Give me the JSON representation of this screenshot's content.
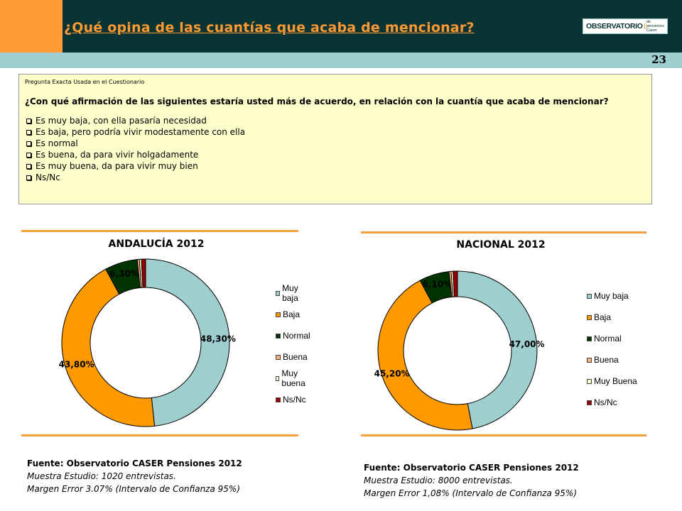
{
  "header": {
    "title": "¿Qué opina de las cuantías que acaba de mencionar?",
    "logo_main": "OBSERVATORIO",
    "logo_sub1": "de pensiones",
    "logo_sub2": "Caser",
    "page_number": "23",
    "colors": {
      "dark": "#0a3333",
      "orange": "#ff9933",
      "teal": "#9ecece"
    }
  },
  "question": {
    "label": "Pregunta Exacta Usada en el Cuestionario",
    "text": "¿Con qué afirmación de las siguientes estaría usted más de acuerdo, en relación con la cuantía que acaba de mencionar?",
    "options": [
      "Es muy baja, con ella pasaría necesidad",
      "Es baja, pero podría vivir modestamente con ella",
      "Es normal",
      "Es buena, da para vivir holgadamente",
      "Es muy buena, da para vivir muy bien",
      "Ns/Nc"
    ]
  },
  "chart_data": [
    {
      "type": "pie",
      "variant": "donut",
      "title": "ANDALUCÍA 2012",
      "categories": [
        "Muy baja",
        "Baja",
        "Normal",
        "Buena",
        "Muy buena",
        "Ns/Nc"
      ],
      "values": [
        48.3,
        43.8,
        6.3,
        0.4,
        0.4,
        0.8
      ],
      "data_labels": [
        "48,30%",
        "43,80%",
        "6,30%",
        "",
        "",
        ""
      ],
      "colors": [
        "#9ecece",
        "#ff9900",
        "#003300",
        "#ffb080",
        "#ffffcc",
        "#990000"
      ],
      "legend_position": "right"
    },
    {
      "type": "pie",
      "variant": "donut",
      "title": "NACIONAL 2012",
      "categories": [
        "Muy baja",
        "Baja",
        "Normal",
        "Buena",
        "Muy Buena",
        "Ns/Nc"
      ],
      "values": [
        47.0,
        45.2,
        6.1,
        0.4,
        0.4,
        0.9
      ],
      "data_labels": [
        "47,00%",
        "45,20%",
        "6,10%",
        "",
        "",
        ""
      ],
      "colors": [
        "#9ecece",
        "#ff9900",
        "#003300",
        "#ffb080",
        "#ffffcc",
        "#990000"
      ],
      "legend_position": "right"
    }
  ],
  "sources": [
    {
      "line1": "Fuente: Observatorio CASER Pensiones 2012",
      "line2": "Muestra Estudio: 1020 entrevistas.",
      "line3": "Margen Error 3.07% (Intervalo de Confianza 95%)"
    },
    {
      "line1": "Fuente: Observatorio CASER Pensiones 2012",
      "line2": "Muestra Estudio: 8000 entrevistas.",
      "line3": "Margen Error 1,08% (Intervalo de Confianza 95%)"
    }
  ]
}
